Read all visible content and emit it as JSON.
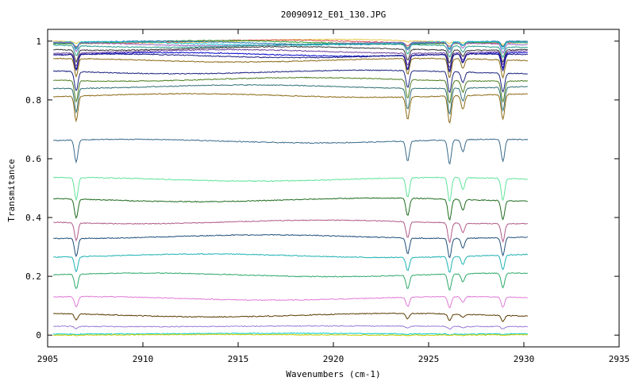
{
  "chart_data": {
    "type": "line",
    "title": "20090912_E01_130.JPG",
    "xlabel": "Wavenumbers (cm-1)",
    "ylabel": "Transmitance",
    "xlim": [
      2905,
      2935
    ],
    "ylim": [
      -0.04,
      1.04
    ],
    "x_ticks": [
      2905,
      2910,
      2915,
      2920,
      2925,
      2930,
      2935
    ],
    "x_tick_labels": [
      "2905",
      "2910",
      "2915",
      "2920",
      "2925",
      "2930",
      "2935"
    ],
    "y_ticks": [
      0,
      0.2,
      0.4,
      0.6,
      0.8,
      1
    ],
    "y_tick_labels": [
      "0",
      "0.2",
      "0.4",
      "0.6",
      "0.8",
      "1"
    ],
    "grid": false,
    "legend": "none",
    "x_range": [
      2905.3,
      2930.2
    ],
    "absorption_lines": [
      {
        "x": 2906.5,
        "relative_depth": 1.0
      },
      {
        "x": 2923.9,
        "relative_depth": 0.9
      },
      {
        "x": 2926.1,
        "relative_depth": 1.1
      },
      {
        "x": 2926.8,
        "relative_depth": 0.55
      },
      {
        "x": 2928.9,
        "relative_depth": 1.0
      }
    ],
    "series": [
      {
        "baseline": 1.0,
        "line_depth": 0.005,
        "color": "#e6c84a"
      },
      {
        "baseline": 0.998,
        "line_depth": 0.01,
        "color": "#d94c4c"
      },
      {
        "baseline": 0.996,
        "line_depth": 0.015,
        "color": "#2ca02c"
      },
      {
        "baseline": 0.994,
        "line_depth": 0.02,
        "color": "#1f77b4"
      },
      {
        "baseline": 0.992,
        "line_depth": 0.025,
        "color": "#17becf"
      },
      {
        "baseline": 0.99,
        "line_depth": 0.03,
        "color": "#9467bd"
      },
      {
        "baseline": 0.985,
        "line_depth": 0.035,
        "color": "#2a9d8f"
      },
      {
        "baseline": 0.975,
        "line_depth": 0.04,
        "color": "#333333"
      },
      {
        "baseline": 0.965,
        "line_depth": 0.045,
        "color": "#6a3d9a"
      },
      {
        "baseline": 0.955,
        "line_depth": 0.05,
        "color": "#0000cc"
      },
      {
        "baseline": 0.95,
        "line_depth": 0.055,
        "color": "#1a1a80"
      },
      {
        "baseline": 0.935,
        "line_depth": 0.06,
        "color": "#8b6914"
      },
      {
        "baseline": 0.895,
        "line_depth": 0.065,
        "color": "#1a237e"
      },
      {
        "baseline": 0.87,
        "line_depth": 0.07,
        "color": "#4b7d1e"
      },
      {
        "baseline": 0.845,
        "line_depth": 0.08,
        "color": "#2f6f73"
      },
      {
        "baseline": 0.815,
        "line_depth": 0.085,
        "color": "#8b6914"
      },
      {
        "baseline": 0.66,
        "line_depth": 0.075,
        "color": "#3a6a8a"
      },
      {
        "baseline": 0.53,
        "line_depth": 0.075,
        "color": "#5fe39a"
      },
      {
        "baseline": 0.46,
        "line_depth": 0.065,
        "color": "#1e6b1e"
      },
      {
        "baseline": 0.385,
        "line_depth": 0.06,
        "color": "#b05a8a"
      },
      {
        "baseline": 0.335,
        "line_depth": 0.06,
        "color": "#1f4e79"
      },
      {
        "baseline": 0.27,
        "line_depth": 0.05,
        "color": "#20b2b2"
      },
      {
        "baseline": 0.205,
        "line_depth": 0.05,
        "color": "#2ca86a"
      },
      {
        "baseline": 0.125,
        "line_depth": 0.035,
        "color": "#e07ad6"
      },
      {
        "baseline": 0.068,
        "line_depth": 0.02,
        "color": "#5a3a00"
      },
      {
        "baseline": 0.03,
        "line_depth": 0.008,
        "color": "#9a7ad6"
      },
      {
        "baseline": 0.005,
        "line_depth": 0.003,
        "color": "#00cccc"
      },
      {
        "baseline": 0.001,
        "line_depth": 0.002,
        "color": "#cccc00"
      }
    ]
  }
}
